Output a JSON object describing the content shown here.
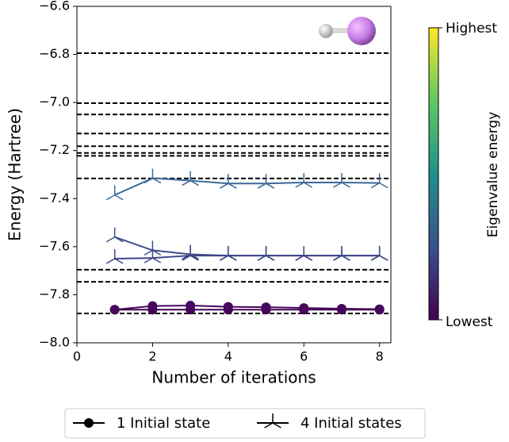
{
  "chart_data": {
    "type": "line",
    "xlabel": "Number of iterations",
    "ylabel": "Energy (Hartree)",
    "xlim": [
      0,
      8.3
    ],
    "ylim": [
      -8.0,
      -6.6
    ],
    "xticks": [
      0,
      2,
      4,
      6,
      8
    ],
    "yticks": [
      {
        "value": -6.6,
        "label": "−6.6"
      },
      {
        "value": -6.8,
        "label": "−6.8"
      },
      {
        "value": -7.0,
        "label": "−7.0"
      },
      {
        "value": -7.2,
        "label": "−7.2"
      },
      {
        "value": -7.4,
        "label": "−7.4"
      },
      {
        "value": -7.6,
        "label": "−7.6"
      },
      {
        "value": -7.8,
        "label": "−7.8"
      },
      {
        "value": -8.0,
        "label": "−8.0"
      }
    ],
    "reference_lines": [
      -6.795,
      -7.003,
      -7.05,
      -7.129,
      -7.182,
      -7.21,
      -7.222,
      -7.316,
      -7.696,
      -7.746,
      -7.878
    ],
    "x": [
      1,
      2,
      3,
      4,
      5,
      6,
      7,
      8
    ],
    "series": [
      {
        "name": "1 Initial state",
        "marker": "circle",
        "lines": [
          {
            "color": "#440154",
            "values": [
              -7.862,
              -7.862,
              -7.862,
              -7.862,
              -7.862,
              -7.862,
              -7.862,
              -7.862
            ]
          },
          {
            "color": "#46085c",
            "values": [
              -7.862,
              -7.847,
              -7.845,
              -7.85,
              -7.852,
              -7.855,
              -7.858,
              -7.86
            ]
          }
        ]
      },
      {
        "name": "4 Initial states",
        "marker": "tri",
        "lines": [
          {
            "color": "#3a6a98",
            "values": [
              -7.385,
              -7.315,
              -7.325,
              -7.337,
              -7.337,
              -7.333,
              -7.333,
              -7.335
            ]
          },
          {
            "color": "#3f4f8b",
            "values": [
              -7.56,
              -7.615,
              -7.632,
              -7.637,
              -7.637,
              -7.637,
              -7.637,
              -7.637
            ]
          },
          {
            "color": "#414487",
            "values": [
              -7.65,
              -7.647,
              -7.637,
              -7.637,
              -7.637,
              -7.637,
              -7.637,
              -7.637
            ]
          }
        ]
      }
    ],
    "colorbar": {
      "label": "Eigenvalue energy",
      "high_label": "Highest",
      "low_label": "Lowest",
      "colors": [
        "#440154",
        "#3b528b",
        "#21918c",
        "#5ec962",
        "#fde725"
      ]
    }
  }
}
